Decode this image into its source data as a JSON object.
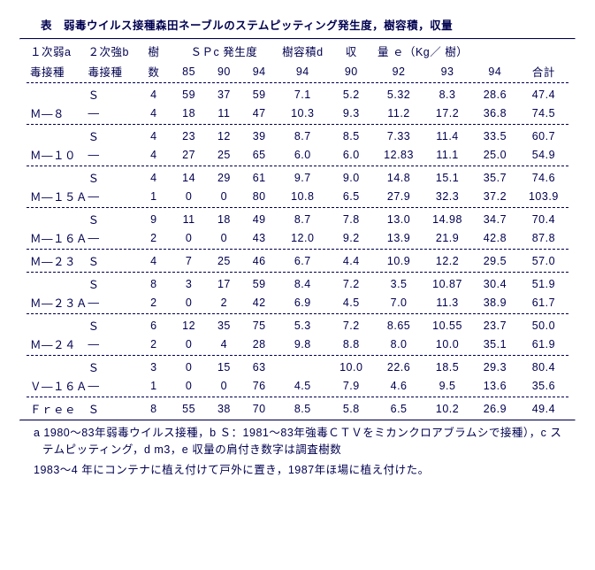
{
  "title": "表　弱毒ウイルス接種森田ネーブルのステムピッティング発生度，樹容積，収量",
  "header": {
    "r1": {
      "c1": "１次弱a",
      "c2": "２次強b",
      "c3": "樹",
      "c456": "ＳＰc 発生度",
      "c7": "樹容積d",
      "c8": "収",
      "c912": "量 ｅ（Kg／ 樹）"
    },
    "r2": {
      "c1": "毒接種",
      "c2": "毒接種",
      "c3": "数",
      "c4": "85",
      "c5": "90",
      "c6": "94",
      "c7": "94",
      "c8": "90",
      "c9": "92",
      "c10": "93",
      "c11": "94",
      "c12": "合計"
    }
  },
  "groups": [
    {
      "name": "Ｍ―８",
      "rows": [
        {
          "c2": "Ｓ",
          "t": "4",
          "s85": "59",
          "s90": "37",
          "s94": "59",
          "v": "7.1",
          "y90": "5.2",
          "y92": "5.32",
          "y93": "8.3",
          "y94": "28.6",
          "tot": "47.4"
        },
        {
          "c2": "―",
          "t": "4",
          "s85": "18",
          "s90": "11",
          "s94": "47",
          "v": "10.3",
          "y90": "9.3",
          "y92": "11.2",
          "y93": "17.2",
          "y94": "36.8",
          "tot": "74.5"
        }
      ]
    },
    {
      "name": "Ｍ―１０",
      "rows": [
        {
          "c2": "Ｓ",
          "t": "4",
          "s85": "23",
          "s90": "12",
          "s94": "39",
          "v": "8.7",
          "y90": "8.5",
          "y92": "7.33",
          "y93": "11.4",
          "y94": "33.5",
          "tot": "60.7"
        },
        {
          "c2": "―",
          "t": "4",
          "s85": "27",
          "s90": "25",
          "s94": "65",
          "v": "6.0",
          "y90": "6.0",
          "y92": "12.83",
          "y93": "11.1",
          "y94": "25.0",
          "tot": "54.9"
        }
      ]
    },
    {
      "name": "Ｍ―１５Ａ",
      "rows": [
        {
          "c2": "Ｓ",
          "t": "4",
          "s85": "14",
          "s90": "29",
          "s94": "61",
          "v": "9.7",
          "y90": "9.0",
          "y92": "14.8",
          "y93": "15.1",
          "y94": "35.7",
          "tot": "74.6"
        },
        {
          "c2": "―",
          "t": "1",
          "s85": "0",
          "s90": "0",
          "s94": "80",
          "v": "10.8",
          "y90": "6.5",
          "y92": "27.9",
          "y93": "32.3",
          "y94": "37.2",
          "tot": "103.9"
        }
      ]
    },
    {
      "name": "Ｍ―１６Ａ",
      "rows": [
        {
          "c2": "Ｓ",
          "t": "9",
          "s85": "11",
          "s90": "18",
          "s94": "49",
          "v": "8.7",
          "y90": "7.8",
          "y92": "13.0",
          "y93": "14.98",
          "y94": "34.7",
          "tot": "70.4"
        },
        {
          "c2": "―",
          "t": "2",
          "s85": "0",
          "s90": "0",
          "s94": "43",
          "v": "12.0",
          "y90": "9.2",
          "y92": "13.9",
          "y93": "21.9",
          "y94": "42.8",
          "tot": "87.8"
        }
      ]
    },
    {
      "name": "Ｍ―２３",
      "rows": [
        {
          "c2": "Ｓ",
          "t": "4",
          "s85": "7",
          "s90": "25",
          "s94": "46",
          "v": "6.7",
          "y90": "4.4",
          "y92": "10.9",
          "y93": "12.2",
          "y94": "29.5",
          "tot": "57.0"
        }
      ]
    },
    {
      "name": "Ｍ―２３Ａ",
      "rows": [
        {
          "c2": "Ｓ",
          "t": "8",
          "s85": "3",
          "s90": "17",
          "s94": "59",
          "v": "8.4",
          "y90": "7.2",
          "y92": "3.5",
          "y93": "10.87",
          "y94": "30.4",
          "tot": "51.9"
        },
        {
          "c2": "―",
          "t": "2",
          "s85": "0",
          "s90": "2",
          "s94": "42",
          "v": "6.9",
          "y90": "4.5",
          "y92": "7.0",
          "y93": "11.3",
          "y94": "38.9",
          "tot": "61.7"
        }
      ]
    },
    {
      "name": "Ｍ―２４",
      "rows": [
        {
          "c2": "Ｓ",
          "t": "6",
          "s85": "12",
          "s90": "35",
          "s94": "75",
          "v": "5.3",
          "y90": "7.2",
          "y92": "8.65",
          "y93": "10.55",
          "y94": "23.7",
          "tot": "50.0"
        },
        {
          "c2": "―",
          "t": "2",
          "s85": "0",
          "s90": "4",
          "s94": "28",
          "v": "9.8",
          "y90": "8.8",
          "y92": "8.0",
          "y93": "10.0",
          "y94": "35.1",
          "tot": "61.9"
        }
      ]
    },
    {
      "name": "Ｖ―１６Ａ",
      "rows": [
        {
          "c2": "Ｓ",
          "t": "3",
          "s85": "0",
          "s90": "15",
          "s94": "63",
          "v": "",
          "y90": "10.0",
          "y92": "22.6",
          "y93": "18.5",
          "y94": "29.3",
          "tot": "80.4"
        },
        {
          "c2": "―",
          "t": "1",
          "s85": "0",
          "s90": "0",
          "s94": "76",
          "v": "4.5",
          "y90": "7.9",
          "y92": "4.6",
          "y93": "9.5",
          "y94": "13.6",
          "tot": "35.6"
        }
      ]
    },
    {
      "name": "Ｆｒｅｅ",
      "rows": [
        {
          "c2": "Ｓ",
          "t": "8",
          "s85": "55",
          "s90": "38",
          "s94": "70",
          "v": "8.5",
          "y90": "5.8",
          "y92": "6.5",
          "y93": "10.2",
          "y94": "26.9",
          "tot": "49.4"
        }
      ]
    }
  ],
  "footnotes": [
    "a 1980～83年弱毒ウイルス接種，b Ｓ：1981～83年強毒ＣＴＶをミカンクロアブラムシで接種），c ステムピッティング，d m3，e 収量の肩付き数字は調査樹数",
    "1983～4 年にコンテナに植え付けて戸外に置き，1987年ほ場に植え付けた。"
  ],
  "style": {
    "text_color": "#000050",
    "background_color": "#ffffff",
    "font_size_pt": 9.5
  }
}
